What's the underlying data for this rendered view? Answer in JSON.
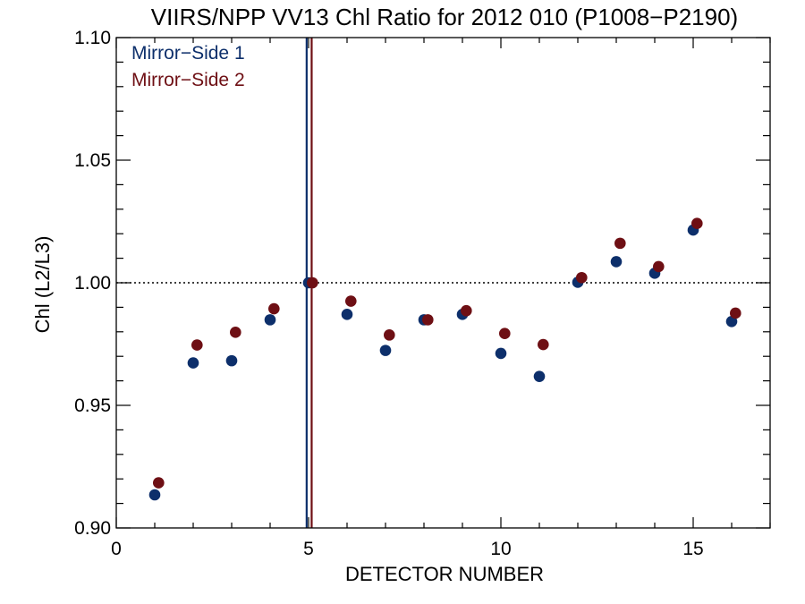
{
  "chart_data": {
    "type": "scatter",
    "title": "VIIRS/NPP VV13 Chl Ratio for 2012 010 (P1008−P2190)",
    "xlabel": "DETECTOR NUMBER",
    "ylabel": "Chl (L2/L3)",
    "xlim": [
      0,
      17
    ],
    "ylim": [
      0.9,
      1.1
    ],
    "xticks": [
      0,
      5,
      10,
      15
    ],
    "xtick_labels": [
      "0",
      "5",
      "10",
      "15"
    ],
    "yticks": [
      0.9,
      0.95,
      1.0,
      1.05,
      1.1
    ],
    "ytick_labels": [
      "0.90",
      "0.95",
      "1.00",
      "1.05",
      "1.10"
    ],
    "reference_line_y": 1.0,
    "reference_line_style": "dotted",
    "legend_position": "top-left",
    "grid": false,
    "series": [
      {
        "name": "Mirror−Side 1",
        "color": "#0d2f6b",
        "x": [
          1,
          2,
          3,
          4,
          5,
          6,
          7,
          8,
          9,
          10,
          11,
          12,
          13,
          14,
          15,
          16
        ],
        "y": [
          0.9135,
          0.9673,
          0.9682,
          0.9849,
          1.0,
          0.9871,
          0.9724,
          0.9849,
          0.9871,
          0.9712,
          0.9618,
          1.0002,
          1.0086,
          1.0039,
          1.0215,
          0.9842
        ],
        "reference_x": 4.95
      },
      {
        "name": "Mirror−Side 2",
        "color": "#6e0f14",
        "x": [
          1.1,
          2.1,
          3.1,
          4.1,
          5.1,
          6.1,
          7.1,
          8.1,
          9.1,
          10.1,
          11.1,
          12.1,
          13.1,
          14.1,
          15.1,
          16.1
        ],
        "y": [
          0.9184,
          0.9746,
          0.9798,
          0.9894,
          1.0,
          0.9925,
          0.9787,
          0.9849,
          0.9886,
          0.9793,
          0.9748,
          1.0021,
          1.0161,
          1.0066,
          1.0242,
          0.9876
        ],
        "reference_x": 5.08
      }
    ]
  }
}
